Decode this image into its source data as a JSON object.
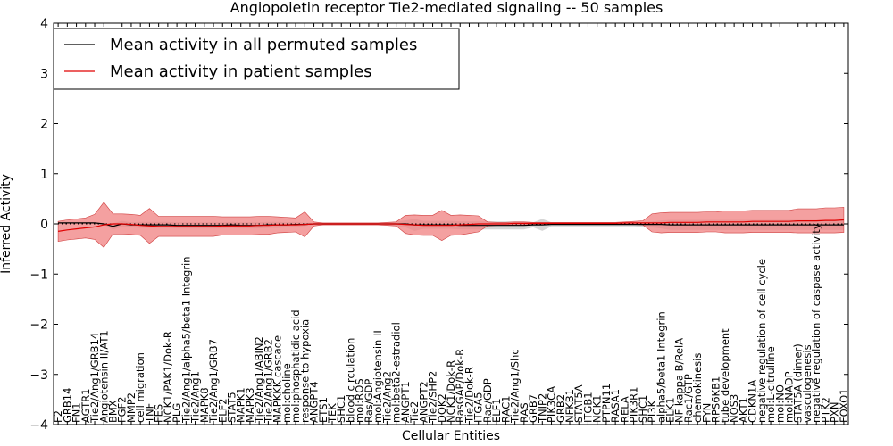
{
  "chart_data": {
    "type": "line",
    "title": "Angiopoietin receptor Tie2-mediated signaling -- 50 samples",
    "xlabel": "Cellular Entities",
    "ylabel": "Inferred Activity",
    "ylim": [
      -4,
      4
    ],
    "yticks": [
      -4,
      -3,
      -2,
      -1,
      0,
      1,
      2,
      3,
      4
    ],
    "legend_position": "top-left",
    "colors": {
      "permuted": "#000000",
      "patient": "#e00000",
      "patient_band": "#f08080",
      "permuted_band": "#c8c8c8"
    },
    "categories": [
      "F2",
      "GRB14",
      "FN1",
      "AGTR1",
      "Tie2/Ang1/GRB14",
      "Angiotensin II/AT1",
      "BMX",
      "FGF2",
      "MMP2",
      "cell migration",
      "TNF",
      "FES",
      "NCK1/PAK1/Dok-R",
      "PLG",
      "Tie2/Ang1/alpha5/beta1 Integrin",
      "Tie2/Ang1",
      "MAPK8",
      "Tie2/Ang1/GRB7",
      "ELF2",
      "STAT5",
      "MAPK1",
      "MAPK3",
      "Tie2/Ang1/ABIN2",
      "Tie2/Ang1/GRB2",
      "MAPKKK cascade",
      "mol:choline",
      "mol:phosphatidic acid",
      "response to hypoxia",
      "ANGPT4",
      "ETS1",
      "TEK",
      "SHC1",
      "blood circulation",
      "mol:ROS",
      "Ras/GDP",
      "mol:Angiotensin II",
      "Tie2/Ang2",
      "mol:beta2-estradiol",
      "ANGPT1",
      "Tie2",
      "ANGPT2",
      "Tie2/SHP2",
      "DOK2",
      "NCK1/Dok-R",
      "RasGAP/Dok-R",
      "Tie2/Dok-R",
      "ITGA5",
      "Rac/GDP",
      "ELF1",
      "RAC1",
      "Tie2/Ang1/Shc",
      "RAS",
      "GRB7",
      "TNIP2",
      "PIK3CA",
      "GRB2",
      "NFKB1",
      "STAT5A",
      "ITGB1",
      "NCK1",
      "PTPN11",
      "RASA1",
      "RELA",
      "PIK3R1",
      "SHC1",
      "PI3K",
      "alpha5/beta1 Integrin",
      "ELK1",
      "NF kappa B/RelA",
      "Rac1/GTP",
      "chemokinesis",
      "FYN",
      "RPS6KB1",
      "tube development",
      "NOS3",
      "AKT1",
      "CDKN1A",
      "negative regulation of cell cycle",
      "mol:L-citrulline",
      "mol:NO",
      "mol:NADP",
      "STAT5A (dimer)",
      "vasculogenesis",
      "negative regulation of caspase activity",
      "PTK2",
      "PXN",
      "FOXO1"
    ],
    "series": [
      {
        "name": "Mean activity in all permuted samples",
        "values": [
          0.02,
          0.02,
          0.02,
          0.02,
          0.02,
          0.0,
          -0.05,
          0.0,
          -0.02,
          -0.02,
          -0.02,
          -0.02,
          -0.02,
          -0.03,
          -0.03,
          -0.03,
          -0.03,
          -0.03,
          -0.03,
          -0.02,
          -0.03,
          -0.03,
          -0.03,
          -0.02,
          -0.02,
          -0.02,
          -0.01,
          -0.01,
          0.0,
          0.0,
          0.0,
          0.0,
          0.0,
          0.0,
          0.0,
          0.0,
          0.0,
          0.0,
          0.0,
          -0.02,
          -0.02,
          -0.02,
          -0.02,
          -0.02,
          -0.03,
          -0.03,
          -0.03,
          -0.03,
          -0.03,
          -0.03,
          -0.03,
          -0.03,
          -0.02,
          -0.02,
          -0.01,
          -0.01,
          -0.01,
          -0.01,
          -0.01,
          -0.01,
          -0.01,
          -0.01,
          -0.01,
          -0.01,
          -0.01,
          -0.01,
          -0.01,
          -0.02,
          -0.02,
          -0.02,
          -0.02,
          -0.02,
          -0.02,
          -0.02,
          -0.02,
          -0.02,
          -0.02,
          -0.02,
          -0.02,
          -0.02,
          -0.02,
          -0.02,
          -0.02,
          -0.02,
          -0.02,
          -0.02,
          -0.02
        ],
        "band": [
          0.01,
          0.01,
          0.01,
          0.01,
          0.01,
          0.02,
          0.06,
          0.06,
          0.05,
          0.06,
          0.06,
          0.06,
          0.06,
          0.06,
          0.06,
          0.06,
          0.06,
          0.06,
          0.06,
          0.06,
          0.06,
          0.06,
          0.06,
          0.06,
          0.06,
          0.05,
          0.05,
          0.03,
          0.02,
          0.02,
          0.01,
          0.01,
          0.01,
          0.01,
          0.01,
          0.02,
          0.02,
          0.05,
          0.07,
          0.08,
          0.08,
          0.08,
          0.08,
          0.08,
          0.08,
          0.08,
          0.08,
          0.08,
          0.08,
          0.08,
          0.08,
          0.08,
          0.05,
          0.04,
          0.04,
          0.04,
          0.04,
          0.04,
          0.04,
          0.04,
          0.04,
          0.04,
          0.04,
          0.04,
          0.05,
          0.06,
          0.08,
          0.1,
          0.1,
          0.1,
          0.1,
          0.1,
          0.1,
          0.1,
          0.1,
          0.1,
          0.1,
          0.1,
          0.1,
          0.1,
          0.1,
          0.1,
          0.1,
          0.1,
          0.1,
          0.1,
          0.1
        ]
      },
      {
        "name": "Mean activity in patient samples",
        "values": [
          -0.15,
          -0.12,
          -0.1,
          -0.08,
          -0.06,
          -0.02,
          0.0,
          0.0,
          -0.01,
          -0.03,
          -0.04,
          -0.05,
          -0.05,
          -0.05,
          -0.05,
          -0.05,
          -0.05,
          -0.05,
          -0.04,
          -0.04,
          -0.04,
          -0.04,
          -0.03,
          -0.03,
          -0.02,
          -0.02,
          -0.02,
          -0.01,
          0.0,
          0.0,
          0.0,
          0.0,
          0.0,
          0.0,
          0.0,
          0.0,
          0.0,
          0.0,
          -0.01,
          -0.02,
          -0.03,
          -0.03,
          -0.03,
          -0.03,
          -0.02,
          -0.01,
          0.0,
          0.0,
          0.0,
          0.0,
          0.01,
          0.01,
          0.01,
          0.01,
          0.01,
          0.01,
          0.01,
          0.01,
          0.01,
          0.01,
          0.01,
          0.01,
          0.02,
          0.02,
          0.02,
          0.02,
          0.02,
          0.03,
          0.03,
          0.03,
          0.03,
          0.04,
          0.04,
          0.04,
          0.04,
          0.04,
          0.05,
          0.05,
          0.05,
          0.05,
          0.05,
          0.06,
          0.06,
          0.06,
          0.07,
          0.07,
          0.08
        ],
        "band": [
          0.2,
          0.2,
          0.2,
          0.2,
          0.25,
          0.2,
          0.2,
          0.2,
          0.2,
          0.2,
          0.22,
          0.2,
          0.2,
          0.2,
          0.2,
          0.2,
          0.2,
          0.2,
          0.18,
          0.18,
          0.18,
          0.18,
          0.18,
          0.18,
          0.16,
          0.15,
          0.14,
          0.1,
          0.04,
          0.02,
          0.02,
          0.02,
          0.02,
          0.02,
          0.02,
          0.02,
          0.03,
          0.04,
          0.18,
          0.2,
          0.2,
          0.2,
          0.2,
          0.2,
          0.2,
          0.18,
          0.16,
          0.04,
          0.03,
          0.03,
          0.03,
          0.03,
          0.02,
          0.02,
          0.02,
          0.02,
          0.02,
          0.02,
          0.02,
          0.02,
          0.02,
          0.02,
          0.02,
          0.03,
          0.04,
          0.18,
          0.2,
          0.2,
          0.2,
          0.2,
          0.2,
          0.2,
          0.2,
          0.22,
          0.22,
          0.22,
          0.22,
          0.22,
          0.22,
          0.22,
          0.22,
          0.24,
          0.24,
          0.24,
          0.25,
          0.25,
          0.25
        ]
      }
    ],
    "spikes_patient": [
      {
        "index": 5,
        "half_width": 0.45
      },
      {
        "index": 10,
        "half_width": 0.35
      },
      {
        "index": 27,
        "half_width": 0.25
      },
      {
        "index": 42,
        "half_width": 0.3
      }
    ],
    "permuted_tail_spikes": [
      {
        "index": 39,
        "half_width": 0.12
      },
      {
        "index": 53,
        "half_width": 0.12
      }
    ]
  }
}
